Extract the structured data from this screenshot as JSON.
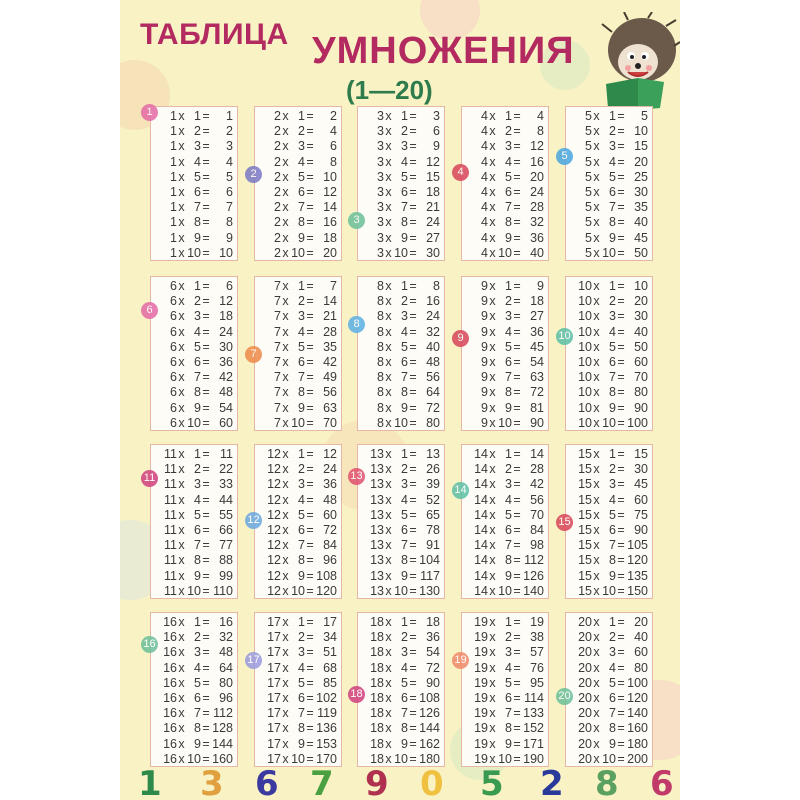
{
  "title": {
    "line1": "ТАБЛИЦА",
    "line2": "УМНОЖЕНИЯ",
    "range": "(1—20)"
  },
  "colors": {
    "title": "#b22a5f",
    "range": "#2e7b4c",
    "background": "#f8f2c4",
    "box_border": "#e7b7a6"
  },
  "tables": [
    {
      "number": "1",
      "badge_color": "#e46aa6",
      "lines": [
        "1 x 1 = 1",
        "1 x 2 = 2",
        "1 x 3 = 3",
        "1 x 4 = 4",
        "1 x 5 = 5",
        "1 x 6 = 6",
        "1 x 7 = 7",
        "1 x 8 = 8",
        "1 x 9 = 9",
        "1 x 10 = 10"
      ]
    },
    {
      "number": "2",
      "badge_color": "#7a78c4",
      "lines": [
        "2 x 1 = 2",
        "2 x 2 = 4",
        "2 x 3 = 6",
        "2 x 4 = 8",
        "2 x 5 = 10",
        "2 x 6 = 12",
        "2 x 7 = 14",
        "2 x 8 = 16",
        "2 x 9 = 18",
        "2 x 10 = 20"
      ]
    },
    {
      "number": "3",
      "badge_color": "#6cc09a",
      "lines": [
        "3 x 1 = 3",
        "3 x 2 = 6",
        "3 x 3 = 9",
        "3 x 4 = 12",
        "3 x 5 = 15",
        "3 x 6 = 18",
        "3 x 7 = 21",
        "3 x 8 = 24",
        "3 x 9 = 27",
        "3 x 10 = 30"
      ]
    },
    {
      "number": "4",
      "badge_color": "#d8455a",
      "lines": [
        "4 x 1 = 4",
        "4 x 2 = 8",
        "4 x 3 = 12",
        "4 x 4 = 16",
        "4 x 5 = 20",
        "4 x 6 = 24",
        "4 x 7 = 28",
        "4 x 8 = 32",
        "4 x 9 = 36",
        "4 x 10 = 40"
      ]
    },
    {
      "number": "5",
      "badge_color": "#4aa6e0",
      "lines": [
        "5 x 1 = 5",
        "5 x 2 = 10",
        "5 x 3 = 15",
        "5 x 4 = 20",
        "5 x 5 = 25",
        "5 x 6 = 30",
        "5 x 7 = 35",
        "5 x 8 = 40",
        "5 x 9 = 45",
        "5 x 10 = 50"
      ]
    },
    {
      "number": "6",
      "badge_color": "#e46aa6",
      "lines": [
        "6 x 1 = 6",
        "6 x 2 = 12",
        "6 x 3 = 18",
        "6 x 4 = 24",
        "6 x 5 = 30",
        "6 x 6 = 36",
        "6 x 7 = 42",
        "6 x 8 = 48",
        "6 x 9 = 54",
        "6 x 10 = 60"
      ]
    },
    {
      "number": "7",
      "badge_color": "#ee8a4a",
      "lines": [
        "7 x 1 = 7",
        "7 x 2 = 14",
        "7 x 3 = 21",
        "7 x 4 = 28",
        "7 x 5 = 35",
        "7 x 6 = 42",
        "7 x 7 = 49",
        "7 x 8 = 56",
        "7 x 9 = 63",
        "7 x 10 = 70"
      ]
    },
    {
      "number": "8",
      "badge_color": "#5ab0e4",
      "lines": [
        "8 x 1 = 8",
        "8 x 2 = 16",
        "8 x 3 = 24",
        "8 x 4 = 32",
        "8 x 5 = 40",
        "8 x 6 = 48",
        "8 x 7 = 56",
        "8 x 8 = 64",
        "8 x 9 = 72",
        "8 x 10 = 80"
      ]
    },
    {
      "number": "9",
      "badge_color": "#d8455a",
      "lines": [
        "9 x 1 = 9",
        "9 x 2 = 18",
        "9 x 3 = 27",
        "9 x 4 = 36",
        "9 x 5 = 45",
        "9 x 6 = 54",
        "9 x 7 = 63",
        "9 x 8 = 72",
        "9 x 9 = 81",
        "9 x 10 = 90"
      ]
    },
    {
      "number": "10",
      "badge_color": "#5cbfa6",
      "lines": [
        "10 x 1 = 10",
        "10 x 2 = 20",
        "10 x 3 = 30",
        "10 x 4 = 40",
        "10 x 5 = 50",
        "10 x 6 = 60",
        "10 x 7 = 70",
        "10 x 8 = 80",
        "10 x 9 = 90",
        "10 x 10 = 100"
      ]
    },
    {
      "number": "11",
      "badge_color": "#d0407e",
      "lines": [
        "11 x 1 = 11",
        "11 x 2 = 22",
        "11 x 3 = 33",
        "11 x 4 = 44",
        "11 x 5 = 55",
        "11 x 6 = 66",
        "11 x 7 = 77",
        "11 x 8 = 88",
        "11 x 9 = 99",
        "11 x 10 = 110"
      ]
    },
    {
      "number": "12",
      "badge_color": "#6aa8e0",
      "lines": [
        "12 x 1 = 12",
        "12 x 2 = 24",
        "12 x 3 = 36",
        "12 x 4 = 48",
        "12 x 5 = 60",
        "12 x 6 = 72",
        "12 x 7 = 84",
        "12 x 8 = 96",
        "12 x 9 = 108",
        "12 x 10 = 120"
      ]
    },
    {
      "number": "13",
      "badge_color": "#e0506e",
      "lines": [
        "13 x 1 = 13",
        "13 x 2 = 26",
        "13 x 3 = 39",
        "13 x 4 = 52",
        "13 x 5 = 65",
        "13 x 6 = 78",
        "13 x 7 = 91",
        "13 x 8 = 104",
        "13 x 9 = 117",
        "13 x 10 = 130"
      ]
    },
    {
      "number": "14",
      "badge_color": "#5cbfa6",
      "lines": [
        "14 x 1 = 14",
        "14 x 2 = 28",
        "14 x 3 = 42",
        "14 x 4 = 56",
        "14 x 5 = 70",
        "14 x 6 = 84",
        "14 x 7 = 98",
        "14 x 8 = 112",
        "14 x 9 = 126",
        "14 x 10 = 140"
      ]
    },
    {
      "number": "15",
      "badge_color": "#d8455a",
      "lines": [
        "15 x 1 = 15",
        "15 x 2 = 30",
        "15 x 3 = 45",
        "15 x 4 = 60",
        "15 x 5 = 75",
        "15 x 6 = 90",
        "15 x 7 = 105",
        "15 x 8 = 120",
        "15 x 9 = 135",
        "15 x 10 = 150"
      ]
    },
    {
      "number": "16",
      "badge_color": "#6cc09a",
      "lines": [
        "16 x 1 = 16",
        "16 x 2 = 32",
        "16 x 3 = 48",
        "16 x 4 = 64",
        "16 x 5 = 80",
        "16 x 6 = 96",
        "16 x 7 = 112",
        "16 x 8 = 128",
        "16 x 9 = 144",
        "16 x 10 = 160"
      ]
    },
    {
      "number": "17",
      "badge_color": "#9a9ae0",
      "lines": [
        "17 x 1 = 17",
        "17 x 2 = 34",
        "17 x 3 = 51",
        "17 x 4 = 68",
        "17 x 5 = 85",
        "17 x 6 = 102",
        "17 x 7 = 119",
        "17 x 8 = 136",
        "17 x 9 = 153",
        "17 x 10 = 170"
      ]
    },
    {
      "number": "18",
      "badge_color": "#d0407e",
      "lines": [
        "18 x 1 = 18",
        "18 x 2 = 36",
        "18 x 3 = 54",
        "18 x 4 = 72",
        "18 x 5 = 90",
        "18 x 6 = 108",
        "18 x 7 = 126",
        "18 x 8 = 144",
        "18 x 9 = 162",
        "18 x 10 = 180"
      ]
    },
    {
      "number": "19",
      "badge_color": "#f08a6a",
      "lines": [
        "19 x 1 = 19",
        "19 x 2 = 38",
        "19 x 3 = 57",
        "19 x 4 = 76",
        "19 x 5 = 95",
        "19 x 6 = 114",
        "19 x 7 = 133",
        "19 x 8 = 152",
        "19 x 9 = 171",
        "19 x 10 = 190"
      ]
    },
    {
      "number": "20",
      "badge_color": "#6cc09a",
      "lines": [
        "20 x 1 = 20",
        "20 x 2 = 40",
        "20 x 3 = 60",
        "20 x 4 = 80",
        "20 x 5 = 100",
        "20 x 6 = 120",
        "20 x 7 = 140",
        "20 x 8 = 160",
        "20 x 9 = 180",
        "20 x 10 = 200"
      ]
    }
  ],
  "decorative_digits": [
    {
      "digit": "1",
      "color": "#2e8a4a"
    },
    {
      "digit": "3",
      "color": "#e0a040"
    },
    {
      "digit": "6",
      "color": "#3a3aa0"
    },
    {
      "digit": "7",
      "color": "#4aa040"
    },
    {
      "digit": "9",
      "color": "#b03050"
    },
    {
      "digit": "0",
      "color": "#f0c040"
    },
    {
      "digit": "5",
      "color": "#3a9a50"
    },
    {
      "digit": "2",
      "color": "#2a3a9a"
    },
    {
      "digit": "8",
      "color": "#5aa060"
    },
    {
      "digit": "6",
      "color": "#c03a6a"
    }
  ]
}
